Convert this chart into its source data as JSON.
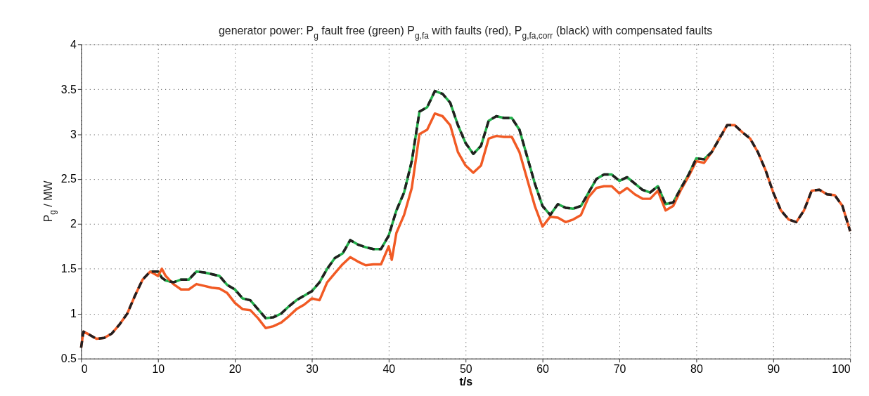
{
  "chart_data": {
    "type": "line",
    "title": "generator power: P$_{g}$ fault free (green) P$_{g,fa}$ with faults (red), P$_{g,fa,corr}$ (black) with compensated faults",
    "xlabel": "t/s",
    "ylabel": "P$_{g}$ / MW",
    "xlim": [
      0,
      100
    ],
    "ylim": [
      0.5,
      4
    ],
    "xticks": [
      0,
      10,
      20,
      30,
      40,
      50,
      60,
      70,
      80,
      90,
      100
    ],
    "yticks": [
      0.5,
      1,
      1.5,
      2,
      2.5,
      3,
      3.5,
      4
    ],
    "grid": true,
    "series": [
      {
        "color": "#22b04b",
        "line_style": "solid",
        "x": [
          9,
          10,
          10.5,
          11,
          12,
          13,
          14,
          15,
          16,
          17,
          18,
          19,
          20,
          21,
          22,
          23,
          24,
          25,
          26,
          27,
          28,
          29,
          30,
          31,
          32,
          33,
          34,
          35,
          36,
          37,
          38,
          39,
          40,
          41,
          42,
          43,
          44,
          45,
          46,
          47,
          48,
          49,
          50,
          51,
          52,
          53,
          54,
          55,
          56,
          57,
          58,
          59,
          60,
          61,
          62,
          63,
          64,
          65,
          66,
          67,
          68,
          69,
          70,
          71,
          72,
          73,
          74,
          75,
          76,
          77,
          78,
          79,
          80,
          81,
          82,
          83
        ],
        "values": [
          1.47,
          1.47,
          1.4,
          1.37,
          1.35,
          1.38,
          1.38,
          1.47,
          1.46,
          1.44,
          1.42,
          1.32,
          1.27,
          1.17,
          1.15,
          1.05,
          0.95,
          0.96,
          1.0,
          1.08,
          1.15,
          1.2,
          1.25,
          1.35,
          1.5,
          1.62,
          1.67,
          1.82,
          1.77,
          1.74,
          1.72,
          1.72,
          1.87,
          2.15,
          2.35,
          2.7,
          3.25,
          3.3,
          3.48,
          3.45,
          3.35,
          3.1,
          2.9,
          2.78,
          2.87,
          3.15,
          3.2,
          3.18,
          3.18,
          3.05,
          2.75,
          2.45,
          2.2,
          2.1,
          2.22,
          2.18,
          2.17,
          2.2,
          2.35,
          2.5,
          2.55,
          2.55,
          2.48,
          2.52,
          2.45,
          2.38,
          2.35,
          2.42,
          2.22,
          2.24,
          2.4,
          2.55,
          2.73,
          2.72,
          2.8,
          2.95
        ]
      },
      {
        "color": "#f15a24",
        "line_style": "solid",
        "x": [
          0,
          0.3,
          1,
          2,
          3,
          4,
          5,
          6,
          7,
          8,
          9,
          10,
          10.5,
          11,
          12,
          13,
          14,
          15,
          16,
          17,
          18,
          19,
          20,
          21,
          22,
          23,
          24,
          25,
          26,
          27,
          28,
          29,
          30,
          31,
          32,
          33,
          34,
          35,
          36,
          37,
          38,
          39,
          40,
          40.4,
          41,
          42,
          43,
          44,
          45,
          46,
          47,
          48,
          49,
          50,
          51,
          52,
          53,
          54,
          55,
          56,
          57,
          58,
          59,
          60,
          61,
          62,
          63,
          64,
          65,
          66,
          67,
          68,
          69,
          70,
          71,
          72,
          73,
          74,
          75,
          76,
          77,
          78,
          79,
          80,
          81,
          82,
          83,
          84,
          85,
          86,
          87,
          88,
          89,
          90,
          91,
          92,
          93,
          94,
          95,
          96,
          97,
          98,
          99,
          100
        ],
        "values": [
          0.62,
          0.8,
          0.77,
          0.72,
          0.73,
          0.78,
          0.88,
          1.0,
          1.2,
          1.38,
          1.47,
          1.42,
          1.5,
          1.42,
          1.33,
          1.27,
          1.27,
          1.33,
          1.31,
          1.29,
          1.28,
          1.23,
          1.12,
          1.05,
          1.04,
          0.95,
          0.84,
          0.86,
          0.9,
          0.97,
          1.05,
          1.1,
          1.17,
          1.15,
          1.35,
          1.45,
          1.55,
          1.63,
          1.58,
          1.54,
          1.55,
          1.55,
          1.75,
          1.6,
          1.9,
          2.1,
          2.4,
          3.0,
          3.05,
          3.23,
          3.2,
          3.1,
          2.8,
          2.65,
          2.57,
          2.65,
          2.95,
          2.98,
          2.97,
          2.97,
          2.8,
          2.5,
          2.2,
          1.97,
          2.08,
          2.07,
          2.02,
          2.05,
          2.1,
          2.3,
          2.4,
          2.42,
          2.42,
          2.34,
          2.4,
          2.33,
          2.28,
          2.28,
          2.37,
          2.15,
          2.2,
          2.38,
          2.53,
          2.7,
          2.68,
          2.8,
          2.95,
          3.1,
          3.1,
          3.02,
          2.95,
          2.8,
          2.6,
          2.35,
          2.15,
          2.05,
          2.02,
          2.15,
          2.37,
          2.38,
          2.33,
          2.32,
          2.2,
          1.92
        ]
      },
      {
        "color": "#231f20",
        "line_style": "dashed",
        "x": [
          0,
          0.3,
          1,
          2,
          3,
          4,
          5,
          6,
          7,
          8,
          9,
          10,
          10.5,
          11,
          12,
          13,
          14,
          15,
          16,
          17,
          18,
          19,
          20,
          21,
          22,
          23,
          24,
          25,
          26,
          27,
          28,
          29,
          30,
          31,
          32,
          33,
          34,
          35,
          36,
          37,
          38,
          39,
          40,
          41,
          42,
          43,
          44,
          45,
          46,
          47,
          48,
          49,
          50,
          51,
          52,
          53,
          54,
          55,
          56,
          57,
          58,
          59,
          60,
          61,
          62,
          63,
          64,
          65,
          66,
          67,
          68,
          69,
          70,
          71,
          72,
          73,
          74,
          75,
          76,
          77,
          78,
          79,
          80,
          81,
          82,
          83,
          84,
          85,
          86,
          87,
          88,
          89,
          90,
          91,
          92,
          93,
          94,
          95,
          96,
          97,
          98,
          99,
          100
        ],
        "values": [
          0.62,
          0.8,
          0.77,
          0.72,
          0.73,
          0.78,
          0.88,
          1.0,
          1.2,
          1.38,
          1.47,
          1.47,
          1.4,
          1.37,
          1.35,
          1.38,
          1.38,
          1.47,
          1.46,
          1.44,
          1.42,
          1.32,
          1.27,
          1.17,
          1.15,
          1.05,
          0.95,
          0.96,
          1.0,
          1.08,
          1.15,
          1.2,
          1.25,
          1.35,
          1.5,
          1.62,
          1.67,
          1.82,
          1.77,
          1.74,
          1.72,
          1.72,
          1.87,
          2.15,
          2.35,
          2.7,
          3.25,
          3.3,
          3.48,
          3.45,
          3.35,
          3.1,
          2.9,
          2.78,
          2.87,
          3.15,
          3.2,
          3.18,
          3.18,
          3.05,
          2.75,
          2.45,
          2.2,
          2.1,
          2.22,
          2.18,
          2.17,
          2.2,
          2.35,
          2.5,
          2.55,
          2.55,
          2.48,
          2.52,
          2.45,
          2.38,
          2.35,
          2.42,
          2.22,
          2.24,
          2.4,
          2.55,
          2.73,
          2.72,
          2.8,
          2.95,
          3.1,
          3.1,
          3.02,
          2.95,
          2.8,
          2.6,
          2.35,
          2.15,
          2.05,
          2.02,
          2.15,
          2.37,
          2.38,
          2.33,
          2.32,
          2.2,
          1.92
        ]
      }
    ]
  }
}
